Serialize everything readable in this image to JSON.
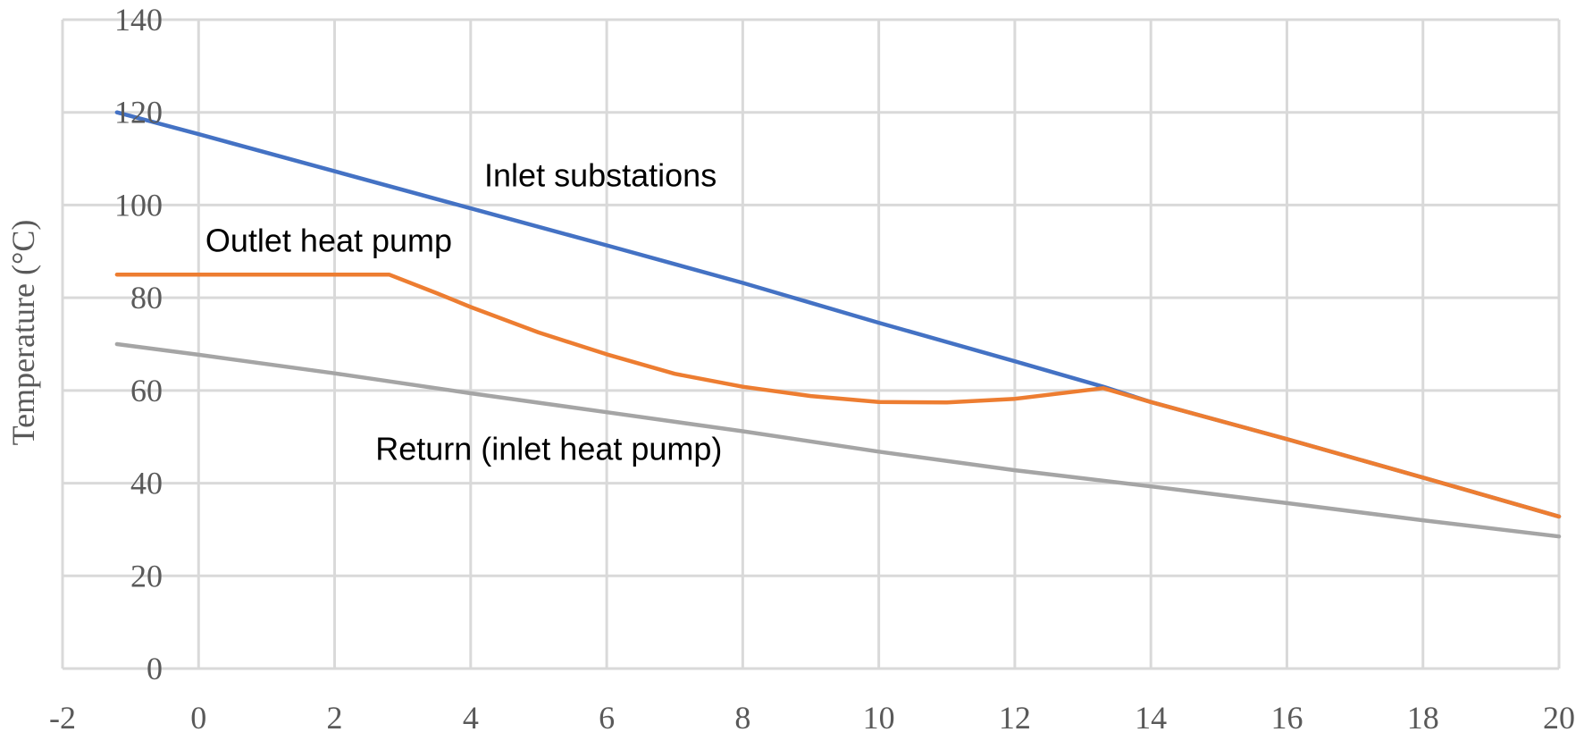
{
  "chart_data": {
    "type": "line",
    "title": "",
    "xlabel": "",
    "ylabel": "Temperature (°C)",
    "xlim": [
      -2,
      20
    ],
    "ylim": [
      0,
      140
    ],
    "x_ticks": [
      -2,
      0,
      2,
      4,
      6,
      8,
      10,
      12,
      14,
      16,
      18,
      20
    ],
    "y_ticks": [
      0,
      20,
      40,
      60,
      80,
      100,
      120,
      140
    ],
    "grid": true,
    "legend": "none",
    "series": [
      {
        "name": "Inlet substations",
        "color": "#4472c4",
        "points": [
          [
            -1.2,
            120
          ],
          [
            0,
            115.3
          ],
          [
            2,
            107.3
          ],
          [
            4,
            99.3
          ],
          [
            6,
            91.3
          ],
          [
            8,
            83.2
          ],
          [
            10,
            74.6
          ],
          [
            12,
            66.3
          ],
          [
            13.3,
            60.8
          ],
          [
            14,
            57.5
          ],
          [
            16,
            49.5
          ],
          [
            18,
            41.2
          ],
          [
            20,
            32.8
          ]
        ]
      },
      {
        "name": "Outlet heat pump",
        "color": "#ed7d31",
        "points": [
          [
            -1.2,
            85
          ],
          [
            0,
            85
          ],
          [
            1,
            85
          ],
          [
            2,
            85
          ],
          [
            2.8,
            85
          ],
          [
            3.5,
            81
          ],
          [
            4,
            78
          ],
          [
            5,
            72.5
          ],
          [
            6,
            67.8
          ],
          [
            7,
            63.6
          ],
          [
            8,
            60.8
          ],
          [
            9,
            58.8
          ],
          [
            10,
            57.5
          ],
          [
            11,
            57.4
          ],
          [
            12,
            58.2
          ],
          [
            13.3,
            60.5
          ],
          [
            14,
            57.5
          ],
          [
            16,
            49.5
          ],
          [
            18,
            41.2
          ],
          [
            20,
            32.8
          ]
        ]
      },
      {
        "name": "Return (inlet heat pump)",
        "color": "#a5a5a5",
        "points": [
          [
            -1.2,
            70
          ],
          [
            0,
            67.7
          ],
          [
            2,
            63.7
          ],
          [
            4,
            59.4
          ],
          [
            6,
            55.3
          ],
          [
            8,
            51.2
          ],
          [
            10,
            46.8
          ],
          [
            12,
            42.8
          ],
          [
            14,
            39.3
          ],
          [
            16,
            35.7
          ],
          [
            18,
            32.0
          ],
          [
            20,
            28.5
          ]
        ]
      }
    ],
    "annotations": [
      {
        "text": "Inlet substations",
        "x": 4.2,
        "y": 104
      },
      {
        "text": "Outlet heat pump",
        "x": 0.1,
        "y": 90
      },
      {
        "text": "Return (inlet heat pump)",
        "x": 2.6,
        "y": 45
      }
    ]
  }
}
